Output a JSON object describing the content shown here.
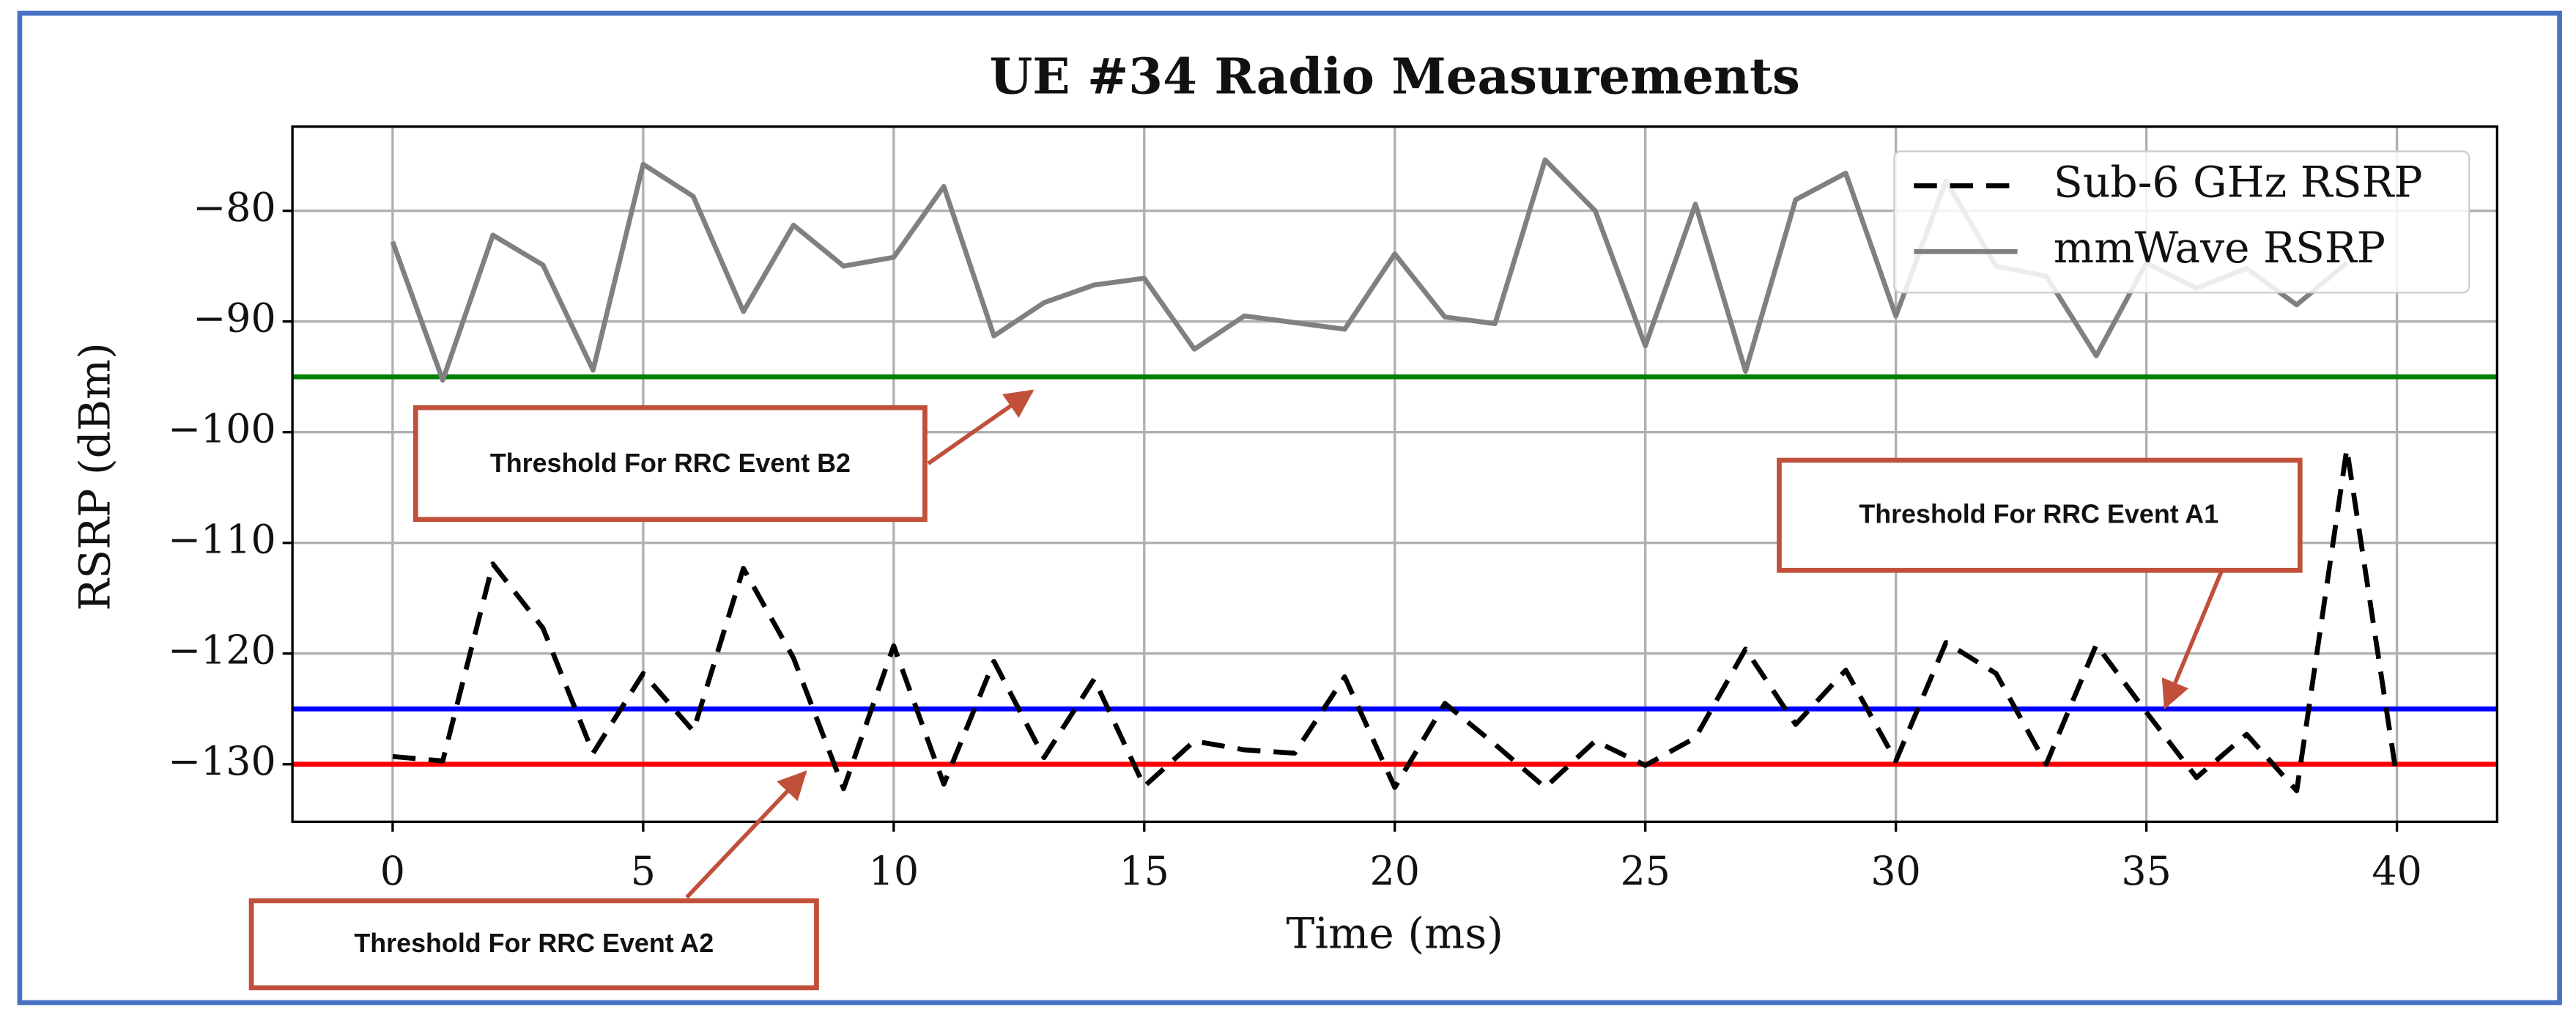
{
  "chart_data": {
    "type": "line",
    "title": "UE #34 Radio Measurements",
    "x_label": "Time (ms)",
    "y_label": "RSRP (dBm)",
    "x": [
      0,
      1,
      2,
      3,
      4,
      5,
      6,
      7,
      8,
      9,
      10,
      11,
      12,
      13,
      14,
      15,
      16,
      17,
      18,
      19,
      20,
      21,
      22,
      23,
      24,
      25,
      26,
      27,
      28,
      29,
      30,
      31,
      32,
      33,
      34,
      35,
      36,
      37,
      38,
      39,
      40
    ],
    "series": [
      {
        "name": "Sub-6 GHz RSRP",
        "color": "#000000",
        "dashed": true,
        "values": [
          -129.3,
          -129.7,
          -111.9,
          -117.7,
          -129,
          -121.8,
          -127,
          -112.3,
          -120.4,
          -132.2,
          -119.3,
          -131.8,
          -120.7,
          -129.4,
          -122.3,
          -132,
          -127.9,
          -128.7,
          -129,
          -122.1,
          -132.1,
          -124.5,
          -128.2,
          -132.1,
          -127.9,
          -130.1,
          -127.6,
          -119.6,
          -126.4,
          -121.5,
          -129.7,
          -119,
          -121.8,
          -130,
          -119.2,
          -125.3,
          -131.2,
          -127.3,
          -132.4,
          -101.5,
          -131.3
        ]
      },
      {
        "name": "mmWave RSRP",
        "color": "#808080",
        "dashed": false,
        "values": [
          -82.8,
          -95.3,
          -82.2,
          -84.9,
          -94.4,
          -75.8,
          -78.7,
          -89.1,
          -81.3,
          -85,
          -84.2,
          -77.8,
          -91.3,
          -88.3,
          -86.7,
          -86.1,
          -92.5,
          -89.5,
          -90.1,
          -90.7,
          -83.9,
          -89.6,
          -90.2,
          -75.4,
          -80,
          -92.2,
          -79.4,
          -94.5,
          -79,
          -76.6,
          -89.5,
          -77.3,
          -85,
          -85.9,
          -93.1,
          -84.7,
          -87,
          -85.2,
          -88.5,
          -84.7,
          null
        ]
      }
    ],
    "hlines": [
      {
        "value": -95,
        "color": "#008000"
      },
      {
        "value": -125,
        "color": "#0000ff"
      },
      {
        "value": -130,
        "color": "#ff0000"
      }
    ],
    "annotations": [
      "Threshold For RRC Event B2",
      "Threshold For RRC Event A1",
      "Threshold For RRC Event A2"
    ],
    "xlim": [
      -2,
      42
    ],
    "ylim": [
      -135.2,
      -72.4
    ],
    "xticks": [
      0,
      5,
      10,
      15,
      20,
      25,
      30,
      35,
      40
    ],
    "yticks": [
      {
        "value": -80,
        "label": "−80"
      },
      {
        "value": -90,
        "label": "−90"
      },
      {
        "value": -100,
        "label": "−100"
      },
      {
        "value": -110,
        "label": "−110"
      },
      {
        "value": -120,
        "label": "−120"
      },
      {
        "value": -130,
        "label": "−130"
      }
    ],
    "grid": true,
    "legend": "upper right"
  }
}
